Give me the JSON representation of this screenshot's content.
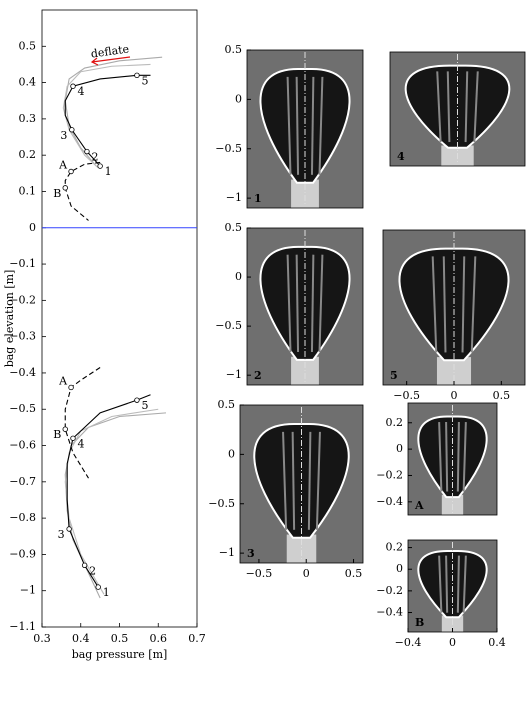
{
  "chart_data": [
    {
      "type": "line",
      "x_label": "bag pressure [m]",
      "y_label": "bag elevation [m]",
      "xlim": [
        0.3,
        0.7
      ],
      "ylim": [
        -1.1,
        0.6
      ],
      "xticks": [
        0.3,
        0.4,
        0.5,
        0.6,
        0.7
      ],
      "yticks": [
        0.5,
        0.4,
        0.3,
        0.2,
        0.1,
        0,
        {
          "value": -0.1,
          "label": "−0.1"
        },
        {
          "value": -0.2,
          "label": "−0.2"
        },
        {
          "value": -0.3,
          "label": "−0.3"
        },
        {
          "value": -0.4,
          "label": "−0.4"
        },
        {
          "value": -0.5,
          "label": "−0.5"
        },
        {
          "value": -0.6,
          "label": "−0.6"
        },
        {
          "value": -0.7,
          "label": "−0.7"
        },
        {
          "value": -0.8,
          "label": "−0.8"
        },
        {
          "value": -0.9,
          "label": "−0.9"
        },
        {
          "value": -1,
          "label": "−1"
        },
        {
          "value": -1.1,
          "label": "−1.1"
        }
      ],
      "hline": {
        "value": 0,
        "color": "#3344ff"
      },
      "annotation": {
        "text": "deflate",
        "color": "#e01010"
      },
      "series": [
        {
          "color": "#aaaaaa",
          "dash": false,
          "x": [
            0.61,
            0.5,
            0.41,
            0.37,
            0.36,
            0.37,
            0.4,
            0.44
          ],
          "values": [
            0.47,
            0.46,
            0.44,
            0.41,
            0.35,
            0.28,
            0.22,
            0.17
          ]
        },
        {
          "color": "#bbbbbb",
          "dash": false,
          "x": [
            0.58,
            0.48,
            0.4,
            0.365,
            0.355,
            0.37,
            0.41,
            0.445
          ],
          "values": [
            0.45,
            0.445,
            0.43,
            0.39,
            0.33,
            0.27,
            0.2,
            0.165
          ]
        },
        {
          "color": "#000000",
          "dash": false,
          "x": [
            0.58,
            0.545,
            0.45,
            0.38,
            0.36,
            0.36,
            0.377,
            0.416,
            0.45
          ],
          "values": [
            0.42,
            0.42,
            0.41,
            0.39,
            0.35,
            0.31,
            0.27,
            0.21,
            0.17
          ]
        },
        {
          "color": "#000000",
          "dash": true,
          "x": [
            0.45,
            0.41,
            0.375,
            0.36,
            0.36,
            0.375,
            0.42
          ],
          "values": [
            0.18,
            0.175,
            0.155,
            0.13,
            0.11,
            0.06,
            0.02
          ]
        },
        {
          "color": "#aaaaaa",
          "dash": false,
          "x": [
            0.62,
            0.5,
            0.42,
            0.375,
            0.36,
            0.365,
            0.38,
            0.45
          ],
          "values": [
            -0.51,
            -0.52,
            -0.55,
            -0.6,
            -0.68,
            -0.78,
            -0.86,
            -1.02
          ]
        },
        {
          "color": "#bbbbbb",
          "dash": false,
          "x": [
            0.6,
            0.48,
            0.4,
            0.37,
            0.36,
            0.37,
            0.4,
            0.46
          ],
          "values": [
            -0.5,
            -0.52,
            -0.56,
            -0.62,
            -0.7,
            -0.8,
            -0.9,
            -1.01
          ]
        },
        {
          "color": "#000000",
          "dash": false,
          "x": [
            0.58,
            0.545,
            0.45,
            0.38,
            0.365,
            0.365,
            0.37,
            0.41,
            0.445
          ],
          "values": [
            -0.46,
            -0.475,
            -0.51,
            -0.58,
            -0.65,
            -0.75,
            -0.83,
            -0.93,
            -0.99
          ]
        },
        {
          "color": "#000000",
          "dash": true,
          "x": [
            0.45,
            0.4,
            0.375,
            0.36,
            0.36,
            0.38,
            0.42
          ],
          "values": [
            -0.385,
            -0.42,
            -0.44,
            -0.5,
            -0.555,
            -0.62,
            -0.69
          ]
        }
      ],
      "points": [
        {
          "label": "5",
          "x": 0.545,
          "y": 0.42
        },
        {
          "label": "4",
          "x": 0.38,
          "y": 0.39
        },
        {
          "label": "3",
          "x": 0.377,
          "y": 0.27
        },
        {
          "label": "2",
          "x": 0.416,
          "y": 0.21
        },
        {
          "label": "1",
          "x": 0.45,
          "y": 0.17
        },
        {
          "label": "A",
          "x": 0.375,
          "y": 0.155
        },
        {
          "label": "B",
          "x": 0.36,
          "y": 0.11
        },
        {
          "label": "5",
          "x": 0.545,
          "y": -0.475
        },
        {
          "label": "A",
          "x": 0.375,
          "y": -0.44
        },
        {
          "label": "B",
          "x": 0.36,
          "y": -0.555
        },
        {
          "label": "4",
          "x": 0.38,
          "y": -0.58
        },
        {
          "label": "3",
          "x": 0.37,
          "y": -0.83
        },
        {
          "label": "2",
          "x": 0.41,
          "y": -0.93
        },
        {
          "label": "1",
          "x": 0.445,
          "y": -0.99
        }
      ]
    },
    {
      "type": "image",
      "label": "1",
      "ylim": [
        -1.1,
        0.5
      ],
      "yticks": [
        0.5,
        0,
        {
          "value": -0.5,
          "label": "−0.5"
        },
        {
          "value": -1,
          "label": "−1"
        }
      ]
    },
    {
      "type": "image",
      "label": "4"
    },
    {
      "type": "image",
      "label": "2",
      "ylim": [
        -1.1,
        0.5
      ],
      "yticks": [
        0.5,
        0,
        {
          "value": -0.5,
          "label": "−0.5"
        },
        {
          "value": -1,
          "label": "−1"
        }
      ]
    },
    {
      "type": "image",
      "label": "5",
      "xlim": [
        -0.75,
        0.75
      ],
      "xticks": [
        {
          "value": -0.5,
          "label": "−0.5"
        },
        0,
        0.5
      ]
    },
    {
      "type": "image",
      "label": "3",
      "xlim": [
        -0.7,
        0.6
      ],
      "ylim": [
        -1.1,
        0.5
      ],
      "yticks": [
        0.5,
        0,
        {
          "value": -0.5,
          "label": "−0.5"
        },
        {
          "value": -1,
          "label": "−1"
        }
      ],
      "xticks": [
        {
          "value": -0.5,
          "label": "−0.5"
        },
        0,
        0.5
      ]
    },
    {
      "type": "image",
      "label": "A",
      "ylim": [
        -0.5,
        0.35
      ],
      "yticks": [
        0.2,
        0,
        {
          "value": -0.2,
          "label": "−0.2"
        },
        {
          "value": -0.4,
          "label": "−0.4"
        }
      ]
    },
    {
      "type": "image",
      "label": "B",
      "xlim": [
        -0.4,
        0.4
      ],
      "ylim": [
        -0.58,
        0.27
      ],
      "yticks": [
        0.2,
        0,
        {
          "value": -0.2,
          "label": "−0.2"
        },
        {
          "value": -0.4,
          "label": "−0.4"
        }
      ],
      "xticks": [
        {
          "value": -0.4,
          "label": "−0.4"
        },
        0,
        0.4
      ]
    }
  ]
}
